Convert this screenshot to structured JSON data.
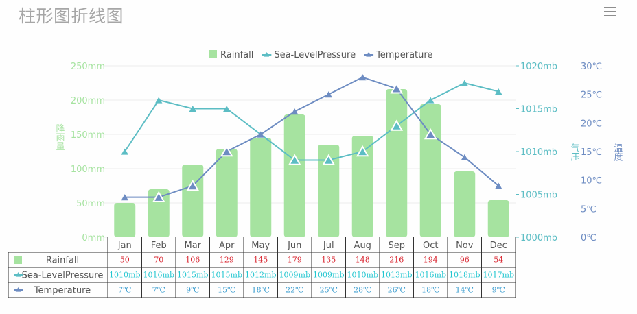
{
  "header": {
    "title": "柱形图折线图",
    "menu_icon": "hamburger-menu-icon"
  },
  "colors": {
    "rainfall": "#a6e3a0",
    "pressure": "#5cbdc4",
    "temperature": "#6d8cc2",
    "rainfall_axis": "#a6e3a0",
    "pressure_axis": "#5cbdc4",
    "temperature_axis": "#6d8cc2",
    "table_rainfall_value": "#d9242f",
    "table_pressure_value": "#22c6d0",
    "table_temperature_value": "#3d9ed0",
    "grid": "#ececec",
    "table_border": "#333333"
  },
  "chart_data": {
    "type": "bar",
    "title": "柱形图折线图",
    "categories": [
      "Jan",
      "Feb",
      "Mar",
      "Apr",
      "May",
      "Jun",
      "Jul",
      "Aug",
      "Sep",
      "Oct",
      "Nov",
      "Dec"
    ],
    "series": [
      {
        "name": "Rainfall",
        "type": "bar",
        "axis": "rainfall",
        "values": [
          50,
          70,
          106,
          129,
          145,
          179,
          135,
          148,
          216,
          194,
          96,
          54
        ],
        "unit": "mm"
      },
      {
        "name": "Sea-LevelPressure",
        "type": "line",
        "axis": "pressure",
        "values": [
          1010,
          1016,
          1015,
          1015,
          1012,
          1009,
          1009,
          1010,
          1013,
          1016,
          1018,
          1017
        ],
        "unit": "mb"
      },
      {
        "name": "Temperature",
        "type": "line",
        "axis": "temperature",
        "values": [
          7,
          7,
          9,
          15,
          18,
          22,
          25,
          28,
          26,
          18,
          14,
          9
        ],
        "unit": "℃"
      }
    ],
    "axes": {
      "rainfall": {
        "label": "降雨量",
        "position": "left",
        "range": [
          0,
          250
        ],
        "ticks": [
          "0mm",
          "50mm",
          "100mm",
          "150mm",
          "200mm",
          "250mm"
        ]
      },
      "pressure": {
        "label": "气压",
        "position": "right",
        "range": [
          1000,
          1020
        ],
        "ticks": [
          "1000mb",
          "1005mb",
          "1010mb",
          "1015mb",
          "1020mb"
        ]
      },
      "temperature": {
        "label": "温度",
        "position": "right-outer",
        "range": [
          0,
          30
        ],
        "ticks": [
          "0℃",
          "5℃",
          "10℃",
          "15℃",
          "20℃",
          "25℃",
          "30℃"
        ]
      }
    },
    "legend": {
      "position": "top-center",
      "items": [
        "Rainfall",
        "Sea-LevelPressure",
        "Temperature"
      ]
    },
    "grid": true,
    "data_table": {
      "rows": [
        {
          "label": "Rainfall",
          "values": [
            "50",
            "70",
            "106",
            "129",
            "145",
            "179",
            "135",
            "148",
            "216",
            "194",
            "96",
            "54"
          ]
        },
        {
          "label": "Sea-LevelPressure",
          "values": [
            "1010mb",
            "1016mb",
            "1015mb",
            "1015mb",
            "1012mb",
            "1009mb",
            "1009mb",
            "1010mb",
            "1013mb",
            "1016mb",
            "1018mb",
            "1017mb"
          ]
        },
        {
          "label": "Temperature",
          "values": [
            "7℃",
            "7℃",
            "9℃",
            "15℃",
            "18℃",
            "22℃",
            "25℃",
            "28℃",
            "26℃",
            "18℃",
            "14℃",
            "9℃"
          ]
        }
      ]
    },
    "highlighted_points": {
      "Sea-LevelPressure": [
        "Jun",
        "Jul",
        "Aug",
        "Sep"
      ],
      "Temperature": [
        "Feb",
        "Mar",
        "Apr",
        "Sep",
        "Oct"
      ]
    }
  }
}
